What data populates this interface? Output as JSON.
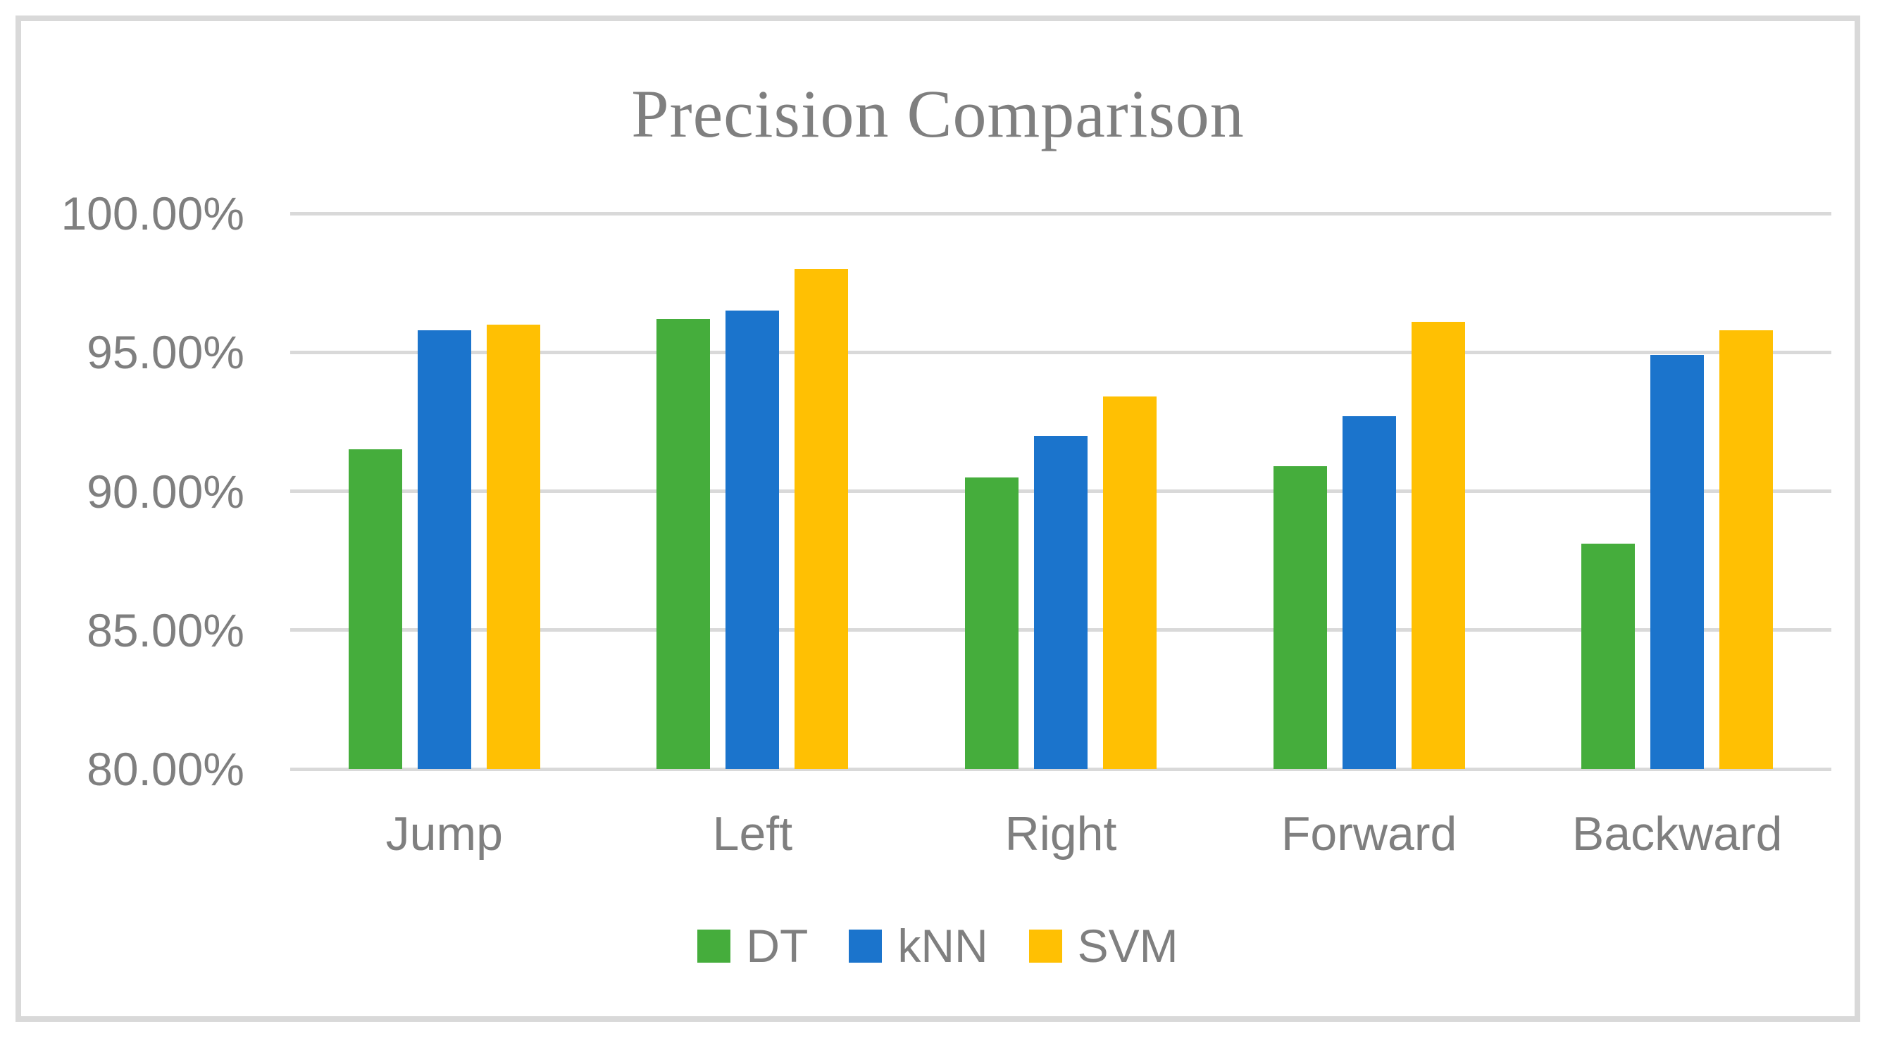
{
  "chart_data": {
    "type": "bar",
    "title": "Precision Comparison",
    "categories": [
      "Jump",
      "Left",
      "Right",
      "Forward",
      "Backward"
    ],
    "series": [
      {
        "name": "DT",
        "color": "#45AD3C",
        "values": [
          91.5,
          96.2,
          90.5,
          90.9,
          88.1
        ]
      },
      {
        "name": "kNN",
        "color": "#1B74CC",
        "values": [
          95.8,
          96.5,
          92.0,
          92.7,
          94.9
        ]
      },
      {
        "name": "SVM",
        "color": "#FFC003",
        "values": [
          96.0,
          98.0,
          93.4,
          96.1,
          95.8
        ]
      }
    ],
    "ylim": [
      80,
      100
    ],
    "y_ticks": [
      {
        "value": 100,
        "label": "100.00%"
      },
      {
        "value": 95,
        "label": "95.00%"
      },
      {
        "value": 90,
        "label": "90.00%"
      },
      {
        "value": 85,
        "label": "85.00%"
      },
      {
        "value": 80,
        "label": "80.00%"
      }
    ],
    "grid": "horizontal",
    "legend_position": "bottom",
    "value_format": "percent"
  },
  "theme": {
    "text_color": "#7F7F7F",
    "gridline_color": "#D9D9D9",
    "frame_border_color": "#D9D9D9",
    "background": "#FFFFFF"
  }
}
